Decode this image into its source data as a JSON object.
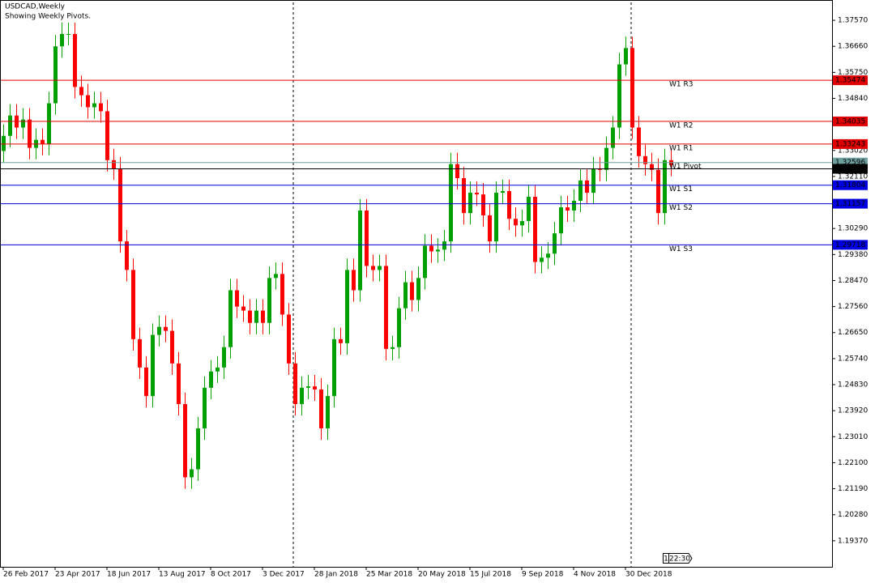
{
  "chart_data": {
    "type": "candlestick",
    "title": "USDCAD,Weekly",
    "subtitle": "Showing Weekly Pivots.",
    "up_color": "#00a000",
    "down_color": "#ff0000",
    "ylim": [
      1.1846,
      1.3828
    ],
    "yticks": [
      {
        "value": 1.3757,
        "label": "1.37570"
      },
      {
        "value": 1.3666,
        "label": "1.36660"
      },
      {
        "value": 1.3575,
        "label": "1.35750"
      },
      {
        "value": 1.3484,
        "label": "1.34840"
      },
      {
        "value": 1.3302,
        "label": "1.33020"
      },
      {
        "value": 1.3211,
        "label": "1.32110"
      },
      {
        "value": 1.3029,
        "label": "1.30290"
      },
      {
        "value": 1.2938,
        "label": "1.29380"
      },
      {
        "value": 1.2847,
        "label": "1.28470"
      },
      {
        "value": 1.2756,
        "label": "1.27560"
      },
      {
        "value": 1.2665,
        "label": "1.26650"
      },
      {
        "value": 1.2574,
        "label": "1.25740"
      },
      {
        "value": 1.2483,
        "label": "1.24830"
      },
      {
        "value": 1.2392,
        "label": "1.23920"
      },
      {
        "value": 1.2301,
        "label": "1.23010"
      },
      {
        "value": 1.221,
        "label": "1.22100"
      },
      {
        "value": 1.2119,
        "label": "1.21190"
      },
      {
        "value": 1.2028,
        "label": "1.20280"
      },
      {
        "value": 1.1937,
        "label": "1.19370"
      }
    ],
    "xticks": [
      {
        "value": 0,
        "label": "26 Feb 2017"
      },
      {
        "value": 8,
        "label": "23 Apr 2017"
      },
      {
        "value": 16,
        "label": "18 Jun 2017"
      },
      {
        "value": 24,
        "label": "13 Aug 2017"
      },
      {
        "value": 32,
        "label": "8 Oct 2017"
      },
      {
        "value": 40,
        "label": "3 Dec 2017"
      },
      {
        "value": 48,
        "label": "28 Jan 2018"
      },
      {
        "value": 56,
        "label": "25 Mar 2018"
      },
      {
        "value": 64,
        "label": "20 May 2018"
      },
      {
        "value": 72,
        "label": "15 Jul 2018"
      },
      {
        "value": 80,
        "label": "9 Sep 2018"
      },
      {
        "value": 88,
        "label": "4 Nov 2018"
      },
      {
        "value": 96,
        "label": "30 Dec 2018"
      }
    ],
    "open": [
      1.33,
      1.3353,
      1.3424,
      1.3382,
      1.341,
      1.3311,
      1.3339,
      1.3325,
      1.3467,
      1.3666,
      1.3709,
      1.3709,
      1.3524,
      1.3495,
      1.3453,
      1.3467,
      1.3439,
      1.3268,
      1.3239,
      1.2984,
      1.2884,
      1.2642,
      1.2543,
      1.2443,
      1.2657,
      1.2685,
      1.2671,
      1.2557,
      1.2415,
      1.2159,
      1.2187,
      1.233,
      1.2472,
      1.2529,
      1.2543,
      1.2614,
      1.2813,
      1.2756,
      1.2742,
      1.2699,
      1.2742,
      1.2699,
      1.2856,
      1.287,
      1.2728,
      1.2557,
      1.2415,
      1.2472,
      1.2477,
      1.2466,
      1.233,
      1.2443,
      1.2642,
      1.2628,
      1.2884,
      1.2813,
      1.3092,
      1.2898,
      1.2884,
      1.2898,
      1.2608,
      1.2614,
      1.275,
      1.2841,
      1.2779,
      1.2856,
      1.2969,
      1.2949,
      1.2955,
      1.2984,
      1.3254,
      1.3205,
      1.3083,
      1.3154,
      1.3148,
      1.3075,
      1.2984,
      1.3154,
      1.316,
      1.3063,
      1.304,
      1.3055,
      1.314,
      1.2912,
      1.2927,
      1.2941,
      1.3012,
      1.3103,
      1.3092,
      1.3126,
      1.3197,
      1.3154,
      1.3239,
      1.3234,
      1.3311,
      1.3382,
      1.3603,
      1.366,
      1.3382,
      1.3282,
      1.3254,
      1.3234,
      1.3083,
      1.3268
    ],
    "high": [
      1.3393,
      1.3464,
      1.3464,
      1.345,
      1.345,
      1.3379,
      1.3379,
      1.3507,
      1.3706,
      1.3749,
      1.3749,
      1.3749,
      1.3564,
      1.3535,
      1.3507,
      1.3507,
      1.3479,
      1.3308,
      1.3279,
      1.3024,
      1.2924,
      1.2682,
      1.2583,
      1.2697,
      1.2725,
      1.2725,
      1.2711,
      1.2597,
      1.2455,
      1.2227,
      1.237,
      1.2512,
      1.2569,
      1.2583,
      1.2654,
      1.2853,
      1.2853,
      1.2796,
      1.2782,
      1.2782,
      1.2782,
      1.2896,
      1.291,
      1.291,
      1.2768,
      1.2597,
      1.2512,
      1.2517,
      1.2517,
      1.2506,
      1.2483,
      1.2682,
      1.2682,
      1.2924,
      1.2924,
      1.3132,
      1.3132,
      1.2938,
      1.2938,
      1.2938,
      1.2654,
      1.279,
      1.2881,
      1.2881,
      1.2896,
      1.3009,
      1.3009,
      1.2995,
      1.3024,
      1.3294,
      1.3294,
      1.3245,
      1.3194,
      1.3194,
      1.3188,
      1.3115,
      1.3194,
      1.32,
      1.32,
      1.3103,
      1.3095,
      1.318,
      1.318,
      1.2967,
      1.2981,
      1.3052,
      1.3143,
      1.3143,
      1.3166,
      1.3237,
      1.3237,
      1.3279,
      1.3279,
      1.3351,
      1.3422,
      1.3643,
      1.37,
      1.37,
      1.3422,
      1.3322,
      1.3294,
      1.3274,
      1.3308,
      1.3308
    ],
    "low": [
      1.326,
      1.3313,
      1.3342,
      1.3342,
      1.3271,
      1.3271,
      1.3285,
      1.3285,
      1.3427,
      1.3626,
      1.3669,
      1.3484,
      1.3455,
      1.3413,
      1.3413,
      1.3399,
      1.3228,
      1.3199,
      1.2944,
      1.2844,
      1.2602,
      1.2503,
      1.2403,
      1.2403,
      1.2617,
      1.2631,
      1.2517,
      1.2375,
      1.2119,
      1.2119,
      1.2147,
      1.229,
      1.2432,
      1.2489,
      1.2503,
      1.2574,
      1.2716,
      1.2702,
      1.2659,
      1.2659,
      1.2659,
      1.2659,
      1.2816,
      1.2688,
      1.2517,
      1.2375,
      1.2375,
      1.2432,
      1.2426,
      1.229,
      1.229,
      1.2403,
      1.2588,
      1.2588,
      1.2773,
      1.2773,
      1.2858,
      1.2844,
      1.2844,
      1.2568,
      1.2568,
      1.2574,
      1.271,
      1.2739,
      1.2739,
      1.2816,
      1.2909,
      1.2909,
      1.2915,
      1.2944,
      1.3165,
      1.3043,
      1.3043,
      1.3108,
      1.3035,
      1.2944,
      1.2944,
      1.3114,
      1.3023,
      1.3,
      1.3,
      1.3015,
      1.2872,
      1.2872,
      1.2887,
      1.2901,
      1.2972,
      1.3052,
      1.3052,
      1.3086,
      1.3114,
      1.3114,
      1.3194,
      1.3194,
      1.3271,
      1.3342,
      1.3563,
      1.3342,
      1.3242,
      1.3214,
      1.3194,
      1.3043,
      1.3043,
      1.3211
    ],
    "close": [
      1.3353,
      1.3424,
      1.3382,
      1.341,
      1.3311,
      1.3339,
      1.3325,
      1.3467,
      1.3666,
      1.3709,
      1.3709,
      1.3524,
      1.3495,
      1.3453,
      1.3467,
      1.3439,
      1.3268,
      1.3239,
      1.2984,
      1.2884,
      1.2642,
      1.2543,
      1.2443,
      1.2657,
      1.2685,
      1.2671,
      1.2557,
      1.2415,
      1.2159,
      1.2187,
      1.233,
      1.2472,
      1.2529,
      1.2543,
      1.2614,
      1.2813,
      1.2756,
      1.2742,
      1.2699,
      1.2742,
      1.2699,
      1.2856,
      1.287,
      1.2728,
      1.2557,
      1.2415,
      1.2472,
      1.2477,
      1.2466,
      1.233,
      1.2443,
      1.2642,
      1.2628,
      1.2884,
      1.2813,
      1.3092,
      1.2898,
      1.2884,
      1.2898,
      1.2608,
      1.2614,
      1.275,
      1.2841,
      1.2779,
      1.2856,
      1.2969,
      1.2949,
      1.2955,
      1.2984,
      1.3254,
      1.3205,
      1.3083,
      1.3154,
      1.3148,
      1.3075,
      1.2984,
      1.3154,
      1.316,
      1.3063,
      1.304,
      1.3055,
      1.314,
      1.2912,
      1.2927,
      1.2941,
      1.3012,
      1.3103,
      1.3092,
      1.3126,
      1.3197,
      1.3154,
      1.3239,
      1.3234,
      1.3311,
      1.3382,
      1.3603,
      1.366,
      1.3382,
      1.3282,
      1.3254,
      1.3234,
      1.3083,
      1.3268,
      1.3251
    ],
    "pivots": [
      {
        "name": "W1  R3",
        "value": 1.35474,
        "color": "#e00000"
      },
      {
        "name": "W1  R2",
        "value": 1.34035,
        "color": "#e00000"
      },
      {
        "name": "W1  R1",
        "value": 1.33243,
        "color": "#e00000"
      },
      {
        "name": "W1  Pivot",
        "value": 1.32596,
        "color": "#6fa0a0"
      },
      {
        "name": "W1  S1",
        "value": 1.31804,
        "color": "#0000e0"
      },
      {
        "name": "W1  S2",
        "value": 1.31157,
        "color": "#0000e0"
      },
      {
        "name": "W1  S3",
        "value": 1.29718,
        "color": "#0000e0"
      }
    ],
    "current_price": 1.32376,
    "timer_page": "1",
    "timer": "22:30"
  }
}
